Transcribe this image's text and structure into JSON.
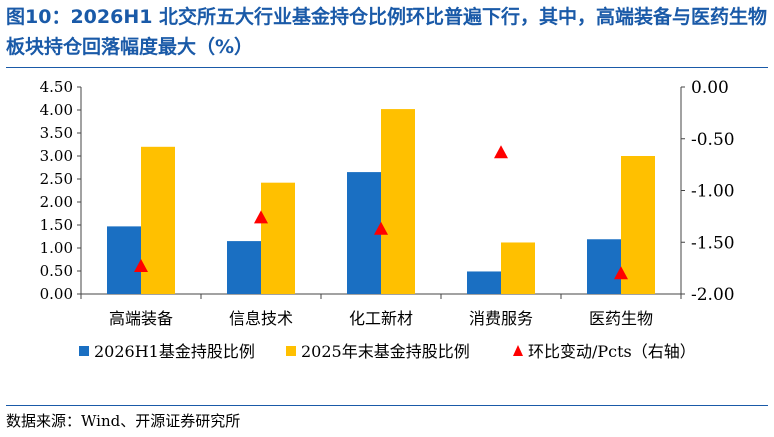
{
  "title": "图10：2026H1 北交所五大行业基金持仓比例环比普遍下行，其中，高端装备与医药生物板块持仓回落幅度最大（%）",
  "source": "数据来源：Wind、开源证券研究所",
  "colors": {
    "title": "#1a5aa8",
    "series1": "#1a6fc2",
    "series2": "#ffc000",
    "series3": "#ff0000"
  },
  "chart_data": {
    "type": "bar",
    "categories": [
      "高端装备",
      "信息技术",
      "化工新材",
      "消费服务",
      "医药生物"
    ],
    "series": [
      {
        "name": "2026H1基金持股比例",
        "type": "bar",
        "axis": "left",
        "values": [
          1.47,
          1.15,
          2.65,
          0.49,
          1.19
        ]
      },
      {
        "name": "2025年末基金持股比例",
        "type": "bar",
        "axis": "left",
        "values": [
          3.2,
          2.42,
          4.02,
          1.12,
          3.0
        ]
      },
      {
        "name": "环比变动/Pcts（右轴）",
        "type": "scatter",
        "marker": "triangle",
        "axis": "right",
        "values": [
          -1.73,
          -1.26,
          -1.37,
          -0.63,
          -1.8
        ]
      }
    ],
    "y_left": {
      "min": 0,
      "max": 4.5,
      "step": 0.5,
      "ticks": [
        "0.00",
        "0.50",
        "1.00",
        "1.50",
        "2.00",
        "2.50",
        "3.00",
        "3.50",
        "4.00",
        "4.50"
      ]
    },
    "y_right": {
      "min": -2.0,
      "max": 0.0,
      "step": 0.5,
      "ticks": [
        "-2.00",
        "-1.50",
        "-1.00",
        "-0.50",
        "0.00"
      ]
    },
    "legend_position": "bottom",
    "grid": false
  }
}
